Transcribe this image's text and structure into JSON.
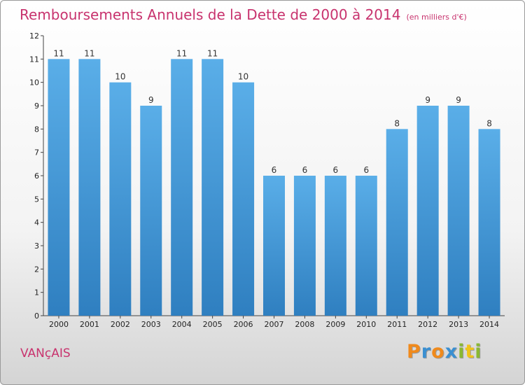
{
  "title": "Remboursements Annuels de la Dette de 2000 à 2014",
  "subtitle": "(en milliers d'€)",
  "town": "VANçAIS",
  "logo": {
    "letters": [
      "P",
      "r",
      "o",
      "x",
      "i",
      "t",
      "i"
    ],
    "colors": [
      "#f08a1c",
      "#3a8fd1",
      "#f08a1c",
      "#3a8fd1",
      "#8ab832",
      "#f0c419",
      "#8ab832"
    ]
  },
  "colors": {
    "bar_light": "#5aaee8",
    "bar_dark": "#2f7fc0",
    "title": "#c8336e"
  },
  "chart_data": {
    "type": "bar",
    "categories": [
      "2000",
      "2001",
      "2002",
      "2003",
      "2004",
      "2005",
      "2006",
      "2007",
      "2008",
      "2009",
      "2010",
      "2011",
      "2012",
      "2013",
      "2014"
    ],
    "values": [
      11,
      11,
      10,
      9,
      11,
      11,
      10,
      6,
      6,
      6,
      6,
      8,
      9,
      9,
      8
    ],
    "ylim": [
      0,
      12
    ],
    "yticks": [
      0,
      1,
      2,
      3,
      4,
      5,
      6,
      7,
      8,
      9,
      10,
      11,
      12
    ],
    "grid": false
  }
}
